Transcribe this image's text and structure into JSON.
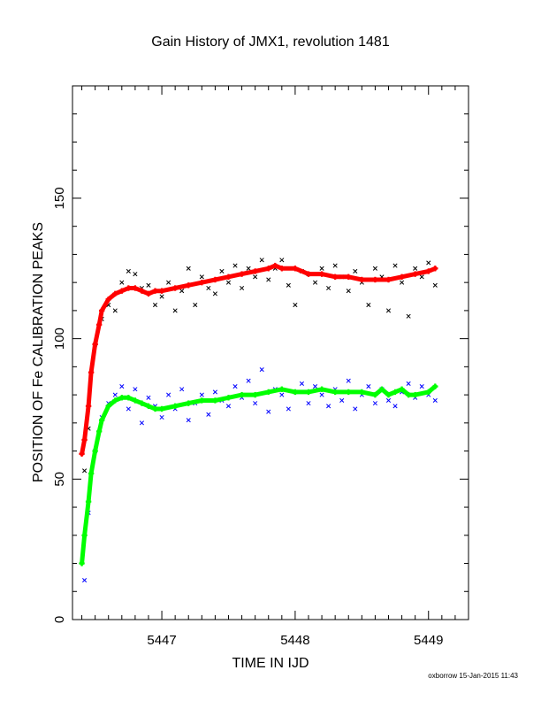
{
  "chart_data": {
    "type": "scatter",
    "title": "Gain History of JMX1, revolution 1481",
    "xlabel": "TIME IN IJD",
    "ylabel": "POSITION OF Fe CALIBRATION PEAKS",
    "footer": "oxborrow 15-Jan-2015 11:43",
    "xlim": [
      5446.33,
      5449.3
    ],
    "ylim": [
      0,
      190
    ],
    "x_ticks": [
      {
        "value": 5447,
        "label": "5447"
      },
      {
        "value": 5448,
        "label": "5448"
      },
      {
        "value": 5449,
        "label": "5449"
      }
    ],
    "y_ticks": [
      {
        "value": 0,
        "label": "0"
      },
      {
        "value": 50,
        "label": "50"
      },
      {
        "value": 100,
        "label": "100"
      },
      {
        "value": 150,
        "label": "150"
      }
    ],
    "grid": false,
    "series": [
      {
        "role": "upper-peak-measurements",
        "marker": "x",
        "color": "#000000",
        "x": [
          5446.42,
          5446.45,
          5446.5,
          5446.55,
          5446.6,
          5446.65,
          5446.7,
          5446.75,
          5446.8,
          5446.85,
          5446.9,
          5446.95,
          5447.0,
          5447.05,
          5447.1,
          5447.15,
          5447.2,
          5447.25,
          5447.3,
          5447.35,
          5447.4,
          5447.45,
          5447.5,
          5447.55,
          5447.6,
          5447.65,
          5447.7,
          5447.75,
          5447.8,
          5447.85,
          5447.9,
          5447.95,
          5448.0,
          5448.05,
          5448.1,
          5448.15,
          5448.2,
          5448.25,
          5448.3,
          5448.35,
          5448.4,
          5448.45,
          5448.5,
          5448.55,
          5448.6,
          5448.65,
          5448.7,
          5448.75,
          5448.8,
          5448.85,
          5448.9,
          5448.95,
          5449.0,
          5449.05
        ],
        "y": [
          53,
          68,
          98,
          107,
          112,
          110,
          120,
          124,
          123,
          118,
          119,
          112,
          115,
          120,
          110,
          117,
          125,
          112,
          122,
          118,
          116,
          124,
          120,
          126,
          118,
          125,
          122,
          128,
          121,
          125,
          128,
          119,
          112,
          124,
          123,
          120,
          125,
          118,
          126,
          122,
          117,
          124,
          120,
          112,
          125,
          122,
          110,
          126,
          120,
          108,
          125,
          122,
          127,
          119
        ]
      },
      {
        "role": "upper-peak-fit",
        "marker": "+",
        "color": "#ff0000",
        "x": [
          5446.4,
          5446.42,
          5446.45,
          5446.47,
          5446.5,
          5446.53,
          5446.55,
          5446.6,
          5446.65,
          5446.7,
          5446.75,
          5446.8,
          5446.85,
          5446.9,
          5446.95,
          5447.0,
          5447.1,
          5447.2,
          5447.3,
          5447.4,
          5447.5,
          5447.6,
          5447.7,
          5447.8,
          5447.85,
          5447.9,
          5448.0,
          5448.1,
          5448.2,
          5448.3,
          5448.4,
          5448.5,
          5448.6,
          5448.7,
          5448.8,
          5448.9,
          5449.0,
          5449.05
        ],
        "y": [
          59,
          64,
          76,
          88,
          98,
          105,
          110,
          114,
          116,
          117,
          118,
          118,
          117,
          116,
          117,
          117,
          118,
          119,
          120,
          121,
          122,
          123,
          124,
          125,
          126,
          125,
          125,
          123,
          123,
          122,
          122,
          121,
          121,
          121,
          122,
          123,
          124,
          125
        ]
      },
      {
        "role": "lower-peak-measurements",
        "marker": "x",
        "color": "#0000ff",
        "x": [
          5446.42,
          5446.45,
          5446.5,
          5446.55,
          5446.6,
          5446.65,
          5446.7,
          5446.75,
          5446.8,
          5446.85,
          5446.9,
          5446.95,
          5447.0,
          5447.05,
          5447.1,
          5447.15,
          5447.2,
          5447.25,
          5447.3,
          5447.35,
          5447.4,
          5447.45,
          5447.5,
          5447.55,
          5447.6,
          5447.65,
          5447.7,
          5447.75,
          5447.8,
          5447.85,
          5447.9,
          5447.95,
          5448.0,
          5448.05,
          5448.1,
          5448.15,
          5448.2,
          5448.25,
          5448.3,
          5448.35,
          5448.4,
          5448.45,
          5448.5,
          5448.55,
          5448.6,
          5448.65,
          5448.7,
          5448.75,
          5448.8,
          5448.85,
          5448.9,
          5448.95,
          5449.0,
          5449.05
        ],
        "y": [
          14,
          38,
          60,
          72,
          77,
          80,
          83,
          75,
          82,
          70,
          79,
          76,
          72,
          80,
          75,
          82,
          71,
          77,
          80,
          73,
          81,
          78,
          76,
          83,
          79,
          85,
          77,
          89,
          74,
          82,
          80,
          75,
          81,
          84,
          77,
          83,
          80,
          76,
          82,
          78,
          85,
          75,
          80,
          83,
          77,
          82,
          78,
          76,
          81,
          84,
          79,
          83,
          80,
          78
        ]
      },
      {
        "role": "lower-peak-fit",
        "marker": "+",
        "color": "#00ff00",
        "x": [
          5446.4,
          5446.42,
          5446.45,
          5446.47,
          5446.5,
          5446.53,
          5446.55,
          5446.6,
          5446.65,
          5446.7,
          5446.75,
          5446.8,
          5446.85,
          5446.9,
          5446.95,
          5447.0,
          5447.1,
          5447.2,
          5447.3,
          5447.4,
          5447.5,
          5447.6,
          5447.7,
          5447.8,
          5447.9,
          5448.0,
          5448.1,
          5448.2,
          5448.3,
          5448.4,
          5448.5,
          5448.6,
          5448.65,
          5448.7,
          5448.75,
          5448.8,
          5448.85,
          5448.9,
          5449.0,
          5449.05
        ],
        "y": [
          20,
          30,
          42,
          52,
          60,
          67,
          71,
          76,
          78,
          79,
          79,
          78,
          77,
          76,
          75,
          75,
          76,
          77,
          78,
          78,
          79,
          80,
          80,
          81,
          82,
          81,
          81,
          82,
          81,
          81,
          81,
          80,
          82,
          80,
          81,
          82,
          80,
          80,
          81,
          83
        ]
      }
    ]
  }
}
